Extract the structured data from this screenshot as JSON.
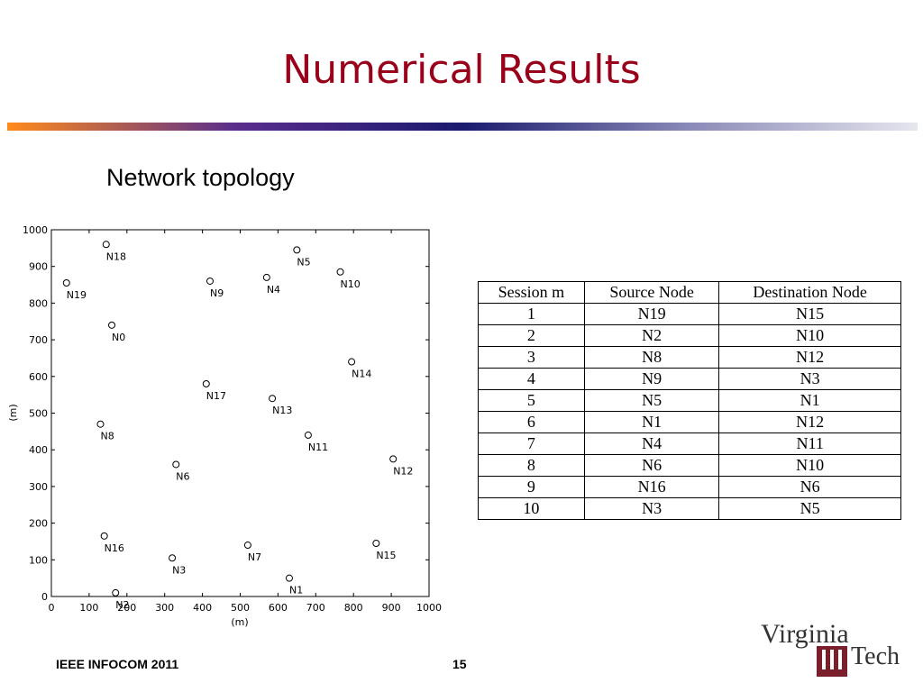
{
  "header": {
    "title": "Numerical Results"
  },
  "subtitle": "Network topology",
  "chart_data": {
    "type": "scatter",
    "xlabel": "(m)",
    "ylabel": "(m)",
    "labels": [
      "N18",
      "N19",
      "N0",
      "N9",
      "N4",
      "N5",
      "N10",
      "N14",
      "N17",
      "N13",
      "N8",
      "N11",
      "N12",
      "N6",
      "N16",
      "N3",
      "N7",
      "N15",
      "N1",
      "N2"
    ],
    "x": [
      145,
      40,
      160,
      420,
      570,
      650,
      765,
      795,
      410,
      585,
      130,
      680,
      905,
      330,
      140,
      320,
      520,
      860,
      630,
      170
    ],
    "values": [
      960,
      855,
      740,
      860,
      870,
      945,
      885,
      640,
      580,
      540,
      470,
      440,
      375,
      360,
      165,
      105,
      140,
      145,
      50,
      10
    ],
    "color": "#000000",
    "xlim": [
      0,
      1000
    ],
    "ylim": [
      0,
      1000
    ],
    "xticks": [
      0,
      100,
      200,
      300,
      400,
      500,
      600,
      700,
      800,
      900,
      1000
    ],
    "yticks": [
      0,
      100,
      200,
      300,
      400,
      500,
      600,
      700,
      800,
      900,
      1000
    ]
  },
  "table": {
    "columns": [
      "Session m",
      "Source Node",
      "Destination Node"
    ],
    "rows": [
      [
        1,
        "N19",
        "N15"
      ],
      [
        2,
        "N2",
        "N10"
      ],
      [
        3,
        "N8",
        "N12"
      ],
      [
        4,
        "N9",
        "N3"
      ],
      [
        5,
        "N5",
        "N1"
      ],
      [
        6,
        "N1",
        "N12"
      ],
      [
        7,
        "N4",
        "N11"
      ],
      [
        8,
        "N6",
        "N10"
      ],
      [
        9,
        "N16",
        "N6"
      ],
      [
        10,
        "N3",
        "N5"
      ]
    ]
  },
  "footer": {
    "left": "IEEE INFOCOM 2011",
    "page": "15",
    "logo": [
      "Virginia",
      "Tech"
    ]
  }
}
